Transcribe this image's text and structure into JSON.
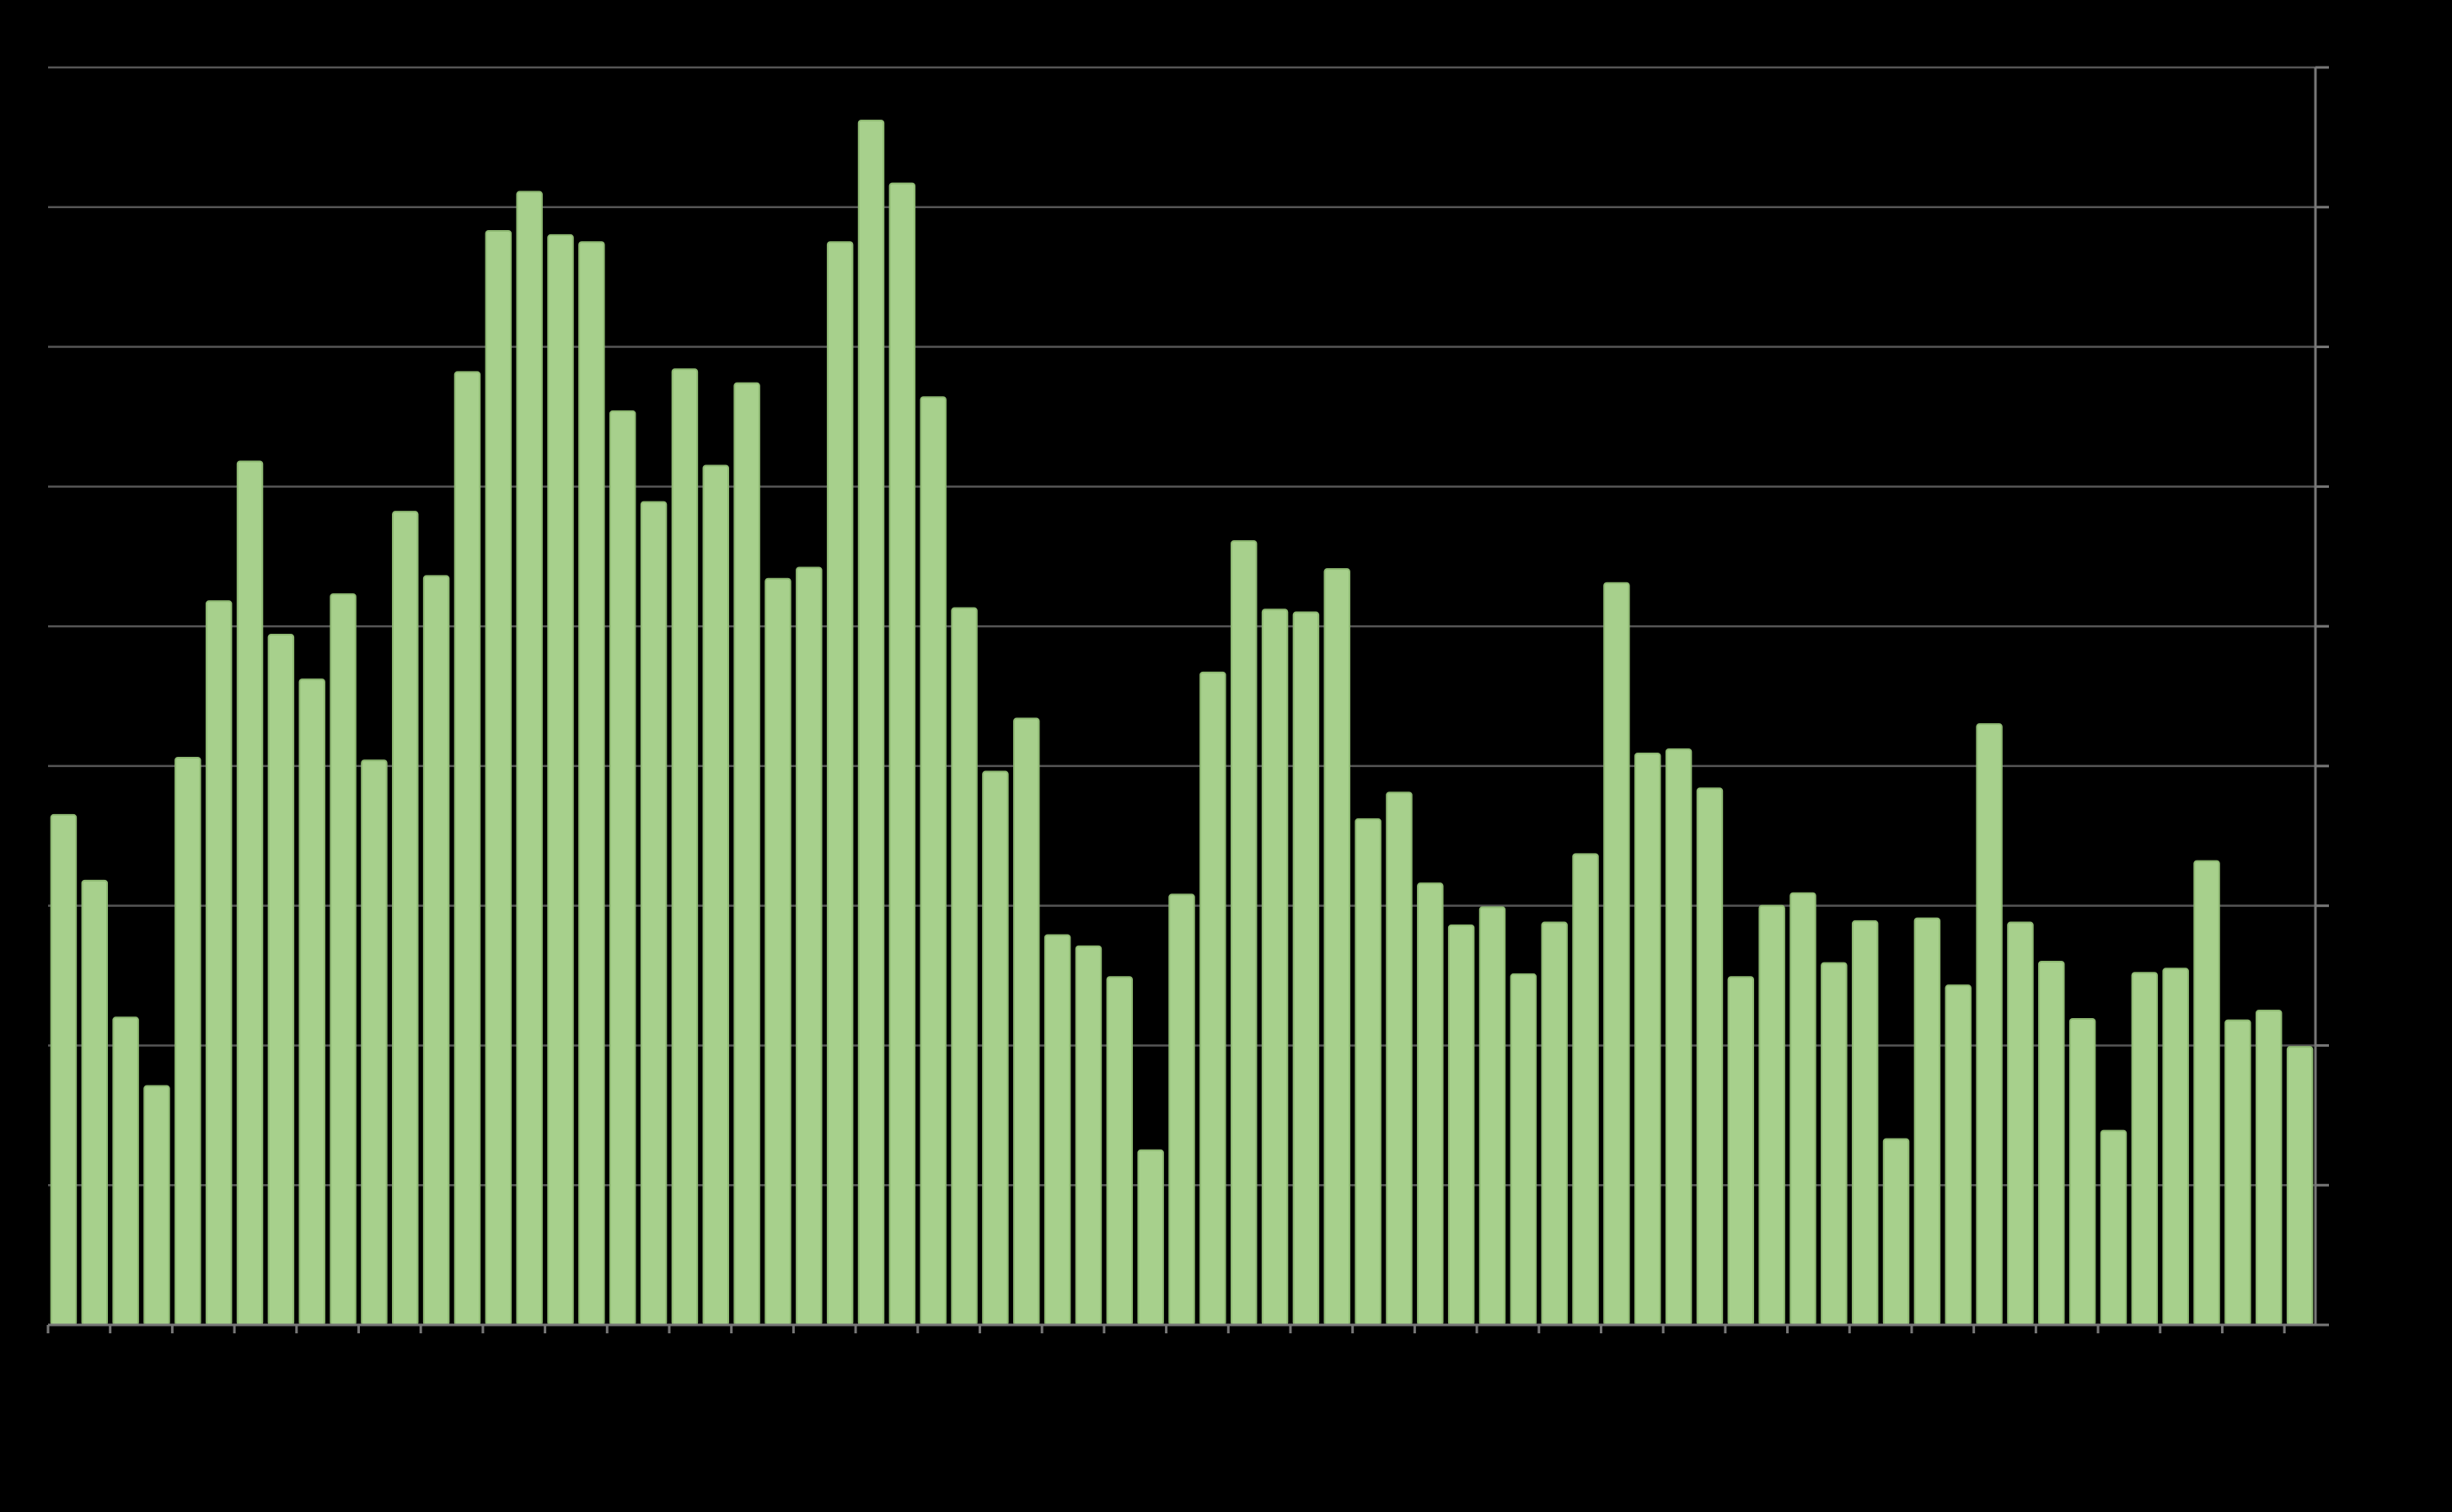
{
  "colors": {
    "background": "#000000",
    "bar_fill": "#a7d08c",
    "bar_stroke": "#8fba73",
    "gridline": "#555555",
    "axis": "#777777"
  },
  "chart_data": {
    "type": "bar",
    "title": "",
    "xlabel": "",
    "ylabel": "",
    "grid": true,
    "legend": "none",
    "ylim": [
      0,
      9
    ],
    "gridlines": [
      1,
      2,
      3,
      4,
      5,
      6,
      7,
      8,
      9
    ],
    "values": [
      3.65,
      3.18,
      2.2,
      1.71,
      4.06,
      5.18,
      6.18,
      4.94,
      4.62,
      5.23,
      4.04,
      5.82,
      5.36,
      6.82,
      7.83,
      8.11,
      7.8,
      7.75,
      6.54,
      5.89,
      6.84,
      6.15,
      6.74,
      5.34,
      5.42,
      7.75,
      8.62,
      8.17,
      6.64,
      5.13,
      3.96,
      4.34,
      2.79,
      2.71,
      2.49,
      1.25,
      3.08,
      4.67,
      5.61,
      5.12,
      5.1,
      5.41,
      3.62,
      3.81,
      3.16,
      2.86,
      2.99,
      2.51,
      2.88,
      3.37,
      5.31,
      4.09,
      4.12,
      3.84,
      2.49,
      3.0,
      3.09,
      2.59,
      2.89,
      1.33,
      2.91,
      2.43,
      4.3,
      2.88,
      2.6,
      2.19,
      1.39,
      2.52,
      2.55,
      3.32,
      2.18,
      2.25,
      1.99
    ]
  }
}
